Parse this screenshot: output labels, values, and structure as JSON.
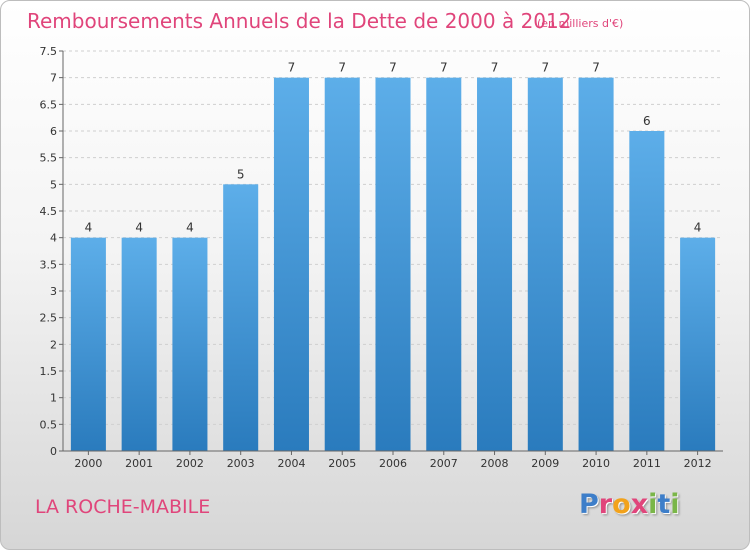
{
  "chart_data": {
    "type": "bar",
    "title": "Remboursements Annuels de la Dette de 2000 à 2012",
    "subtitle": "(en milliers d'€)",
    "categories": [
      "2000",
      "2001",
      "2002",
      "2003",
      "2004",
      "2005",
      "2006",
      "2007",
      "2008",
      "2009",
      "2010",
      "2011",
      "2012"
    ],
    "values": [
      4,
      4,
      4,
      5,
      7,
      7,
      7,
      7,
      7,
      7,
      7,
      6,
      4
    ],
    "ylim": [
      0,
      7.5
    ],
    "yticks": [
      "0",
      "0.5",
      "1",
      "1.5",
      "2",
      "2.5",
      "3",
      "3.5",
      "4",
      "4.5",
      "5",
      "5.5",
      "6",
      "6.5",
      "7",
      "7.5"
    ],
    "grid": true,
    "bar_color_top": "#5daee9",
    "bar_color_bottom": "#2a7bbd"
  },
  "commune": "LA ROCHE-MABILE",
  "logo": {
    "text": "Proxiti",
    "colors": [
      "#3d7ec9",
      "#e0457b",
      "#f2a21b",
      "#e0457b",
      "#7ab648",
      "#3d7ec9",
      "#7ab648"
    ]
  }
}
